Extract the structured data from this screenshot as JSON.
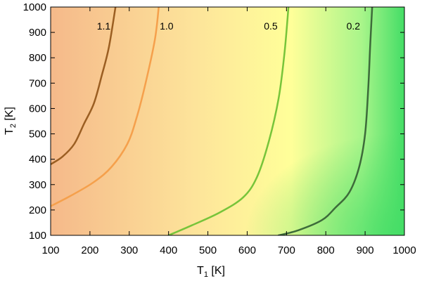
{
  "chart_data": {
    "type": "heatmap",
    "title": "",
    "xlabel": "T",
    "xlabel_sub": "1",
    "xlabel_unit": " [K]",
    "ylabel": "T",
    "ylabel_sub": "2",
    "ylabel_unit": " [K]",
    "xlim": [
      100,
      1000
    ],
    "ylim": [
      100,
      1000
    ],
    "xticks": [
      100,
      200,
      300,
      400,
      500,
      600,
      700,
      800,
      900,
      1000
    ],
    "yticks": [
      100,
      200,
      300,
      400,
      500,
      600,
      700,
      800,
      900,
      1000
    ],
    "grid": false,
    "colormap": [
      "#f5b98a",
      "#fde39a",
      "#ffff99",
      "#a8f58a",
      "#44dd66"
    ],
    "contours": [
      {
        "level": "1.1",
        "color": "#9b5e22",
        "label_at": [
          235,
          925
        ],
        "points": [
          [
            100,
            380
          ],
          [
            130,
            410
          ],
          [
            160,
            460
          ],
          [
            185,
            540
          ],
          [
            210,
            620
          ],
          [
            230,
            730
          ],
          [
            248,
            840
          ],
          [
            265,
            1000
          ]
        ]
      },
      {
        "level": "1.0",
        "color": "#f5a04c",
        "label_at": [
          395,
          925
        ],
        "points": [
          [
            100,
            215
          ],
          [
            150,
            255
          ],
          [
            210,
            310
          ],
          [
            255,
            370
          ],
          [
            295,
            460
          ],
          [
            318,
            560
          ],
          [
            340,
            690
          ],
          [
            365,
            870
          ],
          [
            375,
            1000
          ]
        ]
      },
      {
        "level": "0.5",
        "color": "#77c43a",
        "label_at": [
          660,
          925
        ],
        "points": [
          [
            400,
            100
          ],
          [
            460,
            140
          ],
          [
            530,
            190
          ],
          [
            590,
            250
          ],
          [
            625,
            330
          ],
          [
            655,
            470
          ],
          [
            680,
            640
          ],
          [
            695,
            820
          ],
          [
            705,
            1000
          ]
        ]
      },
      {
        "level": "0.2",
        "color": "#3d6b3a",
        "label_at": [
          870,
          925
        ],
        "points": [
          [
            680,
            100
          ],
          [
            730,
            120
          ],
          [
            790,
            160
          ],
          [
            825,
            210
          ],
          [
            860,
            270
          ],
          [
            885,
            370
          ],
          [
            900,
            500
          ],
          [
            908,
            680
          ],
          [
            913,
            850
          ],
          [
            918,
            1000
          ]
        ]
      }
    ]
  }
}
